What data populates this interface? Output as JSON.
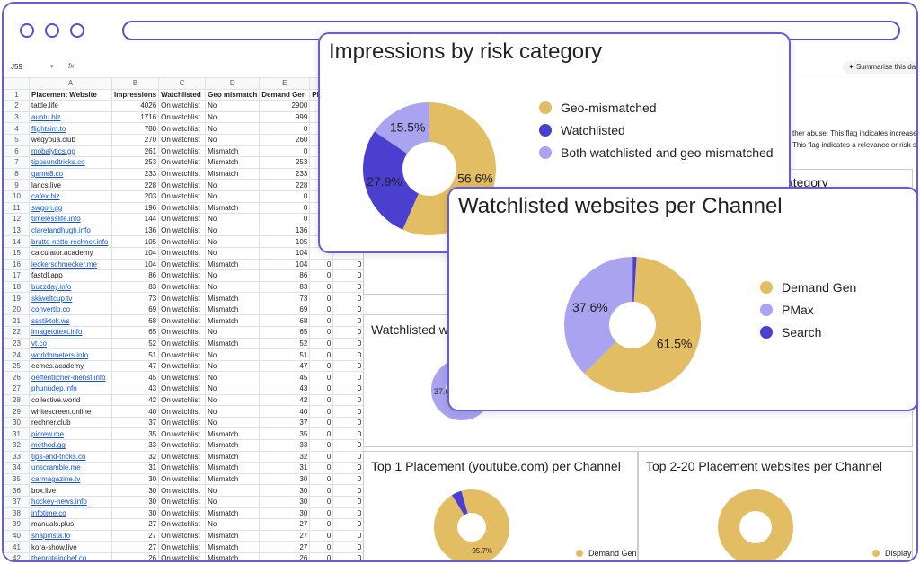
{
  "sheet": {
    "cell_ref": "J59",
    "fx": "fx",
    "summarise_label": "Summarise this da",
    "col_letters": [
      "",
      "A",
      "B",
      "C",
      "D",
      "E",
      "F",
      "",
      "",
      "",
      "",
      "P",
      "Q"
    ],
    "headers": [
      "Placement Website",
      "Impressions",
      "Watchlisted",
      "Geo mismatch",
      "Demand Gen",
      "PM"
    ],
    "rows": [
      [
        "2",
        "tattle.life",
        "4026",
        "On watchlist",
        "No",
        "2900",
        "11",
        "",
        false
      ],
      [
        "3",
        "aubtu.biz",
        "1716",
        "On watchlist",
        "No",
        "999",
        "7",
        "",
        true
      ],
      [
        "4",
        "flightsim.to",
        "780",
        "On watchlist",
        "No",
        "0",
        "6",
        "",
        true
      ],
      [
        "5",
        "weqyoua.club",
        "270",
        "On watchlist",
        "No",
        "260",
        "",
        "",
        false
      ],
      [
        "6",
        "mobalytics.gg",
        "261",
        "On watchlist",
        "Mismatch",
        "0",
        "2",
        "",
        true
      ],
      [
        "7",
        "tippsundtricks.co",
        "253",
        "On watchlist",
        "Mismatch",
        "253",
        "",
        "",
        true
      ],
      [
        "8",
        "game8.co",
        "233",
        "On watchlist",
        "Mismatch",
        "233",
        "",
        "",
        true
      ],
      [
        "9",
        "lancs.live",
        "228",
        "On watchlist",
        "No",
        "228",
        "",
        "",
        false
      ],
      [
        "10",
        "cafex.biz",
        "203",
        "On watchlist",
        "No",
        "0",
        "2",
        "",
        true
      ],
      [
        "11",
        "swgoh.gg",
        "196",
        "On watchlist",
        "Mismatch",
        "0",
        "1",
        "",
        true
      ],
      [
        "12",
        "timelesslife.info",
        "144",
        "On watchlist",
        "No",
        "0",
        "1",
        "",
        true
      ],
      [
        "13",
        "claretandhugh.info",
        "136",
        "On watchlist",
        "No",
        "136",
        "",
        "",
        true
      ],
      [
        "14",
        "brutto-netto-rechner.info",
        "105",
        "On watchlist",
        "No",
        "105",
        "",
        "",
        true
      ],
      [
        "15",
        "calculator.academy",
        "104",
        "On watchlist",
        "No",
        "104",
        "",
        "",
        false
      ],
      [
        "16",
        "leckerschmecker.me",
        "104",
        "On watchlist",
        "Mismatch",
        "104",
        "0",
        "0",
        true
      ],
      [
        "17",
        "fastdl.app",
        "86",
        "On watchlist",
        "No",
        "86",
        "0",
        "0",
        false
      ],
      [
        "18",
        "buzzday.info",
        "83",
        "On watchlist",
        "No",
        "83",
        "0",
        "0",
        true
      ],
      [
        "19",
        "skiweltcup.tv",
        "73",
        "On watchlist",
        "Mismatch",
        "73",
        "0",
        "0",
        true
      ],
      [
        "20",
        "convertio.co",
        "69",
        "On watchlist",
        "Mismatch",
        "69",
        "0",
        "0",
        true
      ],
      [
        "21",
        "ssstiktok.ws",
        "68",
        "On watchlist",
        "Mismatch",
        "68",
        "0",
        "0",
        true
      ],
      [
        "22",
        "imagetotext.info",
        "65",
        "On watchlist",
        "No",
        "65",
        "0",
        "0",
        true
      ],
      [
        "23",
        "vt.co",
        "52",
        "On watchlist",
        "Mismatch",
        "52",
        "0",
        "0",
        true
      ],
      [
        "24",
        "worldometers.info",
        "51",
        "On watchlist",
        "No",
        "51",
        "0",
        "0",
        true
      ],
      [
        "25",
        "ecmes.academy",
        "47",
        "On watchlist",
        "No",
        "47",
        "0",
        "0",
        false
      ],
      [
        "26",
        "oeffentlicher-dienst.info",
        "45",
        "On watchlist",
        "No",
        "45",
        "0",
        "0",
        true
      ],
      [
        "27",
        "phunudep.info",
        "43",
        "On watchlist",
        "No",
        "43",
        "0",
        "0",
        true
      ],
      [
        "28",
        "collective.world",
        "42",
        "On watchlist",
        "No",
        "42",
        "0",
        "0",
        false
      ],
      [
        "29",
        "whitescreen.online",
        "40",
        "On watchlist",
        "No",
        "40",
        "0",
        "0",
        false
      ],
      [
        "30",
        "rechner.club",
        "37",
        "On watchlist",
        "No",
        "37",
        "0",
        "0",
        false
      ],
      [
        "31",
        "picrew.me",
        "35",
        "On watchlist",
        "Mismatch",
        "35",
        "0",
        "0",
        true
      ],
      [
        "32",
        "method.gg",
        "33",
        "On watchlist",
        "Mismatch",
        "33",
        "0",
        "0",
        true
      ],
      [
        "33",
        "tips-and-tricks.co",
        "32",
        "On watchlist",
        "Mismatch",
        "32",
        "0",
        "0",
        true
      ],
      [
        "34",
        "unscramble.me",
        "31",
        "On watchlist",
        "Mismatch",
        "31",
        "0",
        "0",
        true
      ],
      [
        "35",
        "carmagazine.tv",
        "30",
        "On watchlist",
        "Mismatch",
        "30",
        "0",
        "0",
        true
      ],
      [
        "36",
        "box.live",
        "30",
        "On watchlist",
        "No",
        "30",
        "0",
        "0",
        false
      ],
      [
        "37",
        "hockey-news.info",
        "30",
        "On watchlist",
        "No",
        "30",
        "0",
        "0",
        true
      ],
      [
        "38",
        "infotime.co",
        "30",
        "On watchlist",
        "Mismatch",
        "30",
        "0",
        "0",
        true
      ],
      [
        "39",
        "manuals.plus",
        "27",
        "On watchlist",
        "No",
        "27",
        "0",
        "0",
        false
      ],
      [
        "40",
        "snapinsta.to",
        "27",
        "On watchlist",
        "Mismatch",
        "27",
        "0",
        "0",
        true
      ],
      [
        "41",
        "kora-show.live",
        "27",
        "On watchlist",
        "Mismatch",
        "27",
        "0",
        "0",
        false
      ],
      [
        "42",
        "theproteinchef.co",
        "26",
        "On watchlist",
        "Mismatch",
        "26",
        "0",
        "0",
        true
      ]
    ],
    "note1": "ther abuse. This flag indicates increase",
    "note2": "This flag indicates a relevance or risk s",
    "note_c": "c)"
  },
  "bg_cards": {
    "category_title": "ategory",
    "watchlisted_title": "Watchlisted w",
    "top1_title": "Top 1 Placement (youtube.com) per Channel",
    "top2_title": "Top 2-20 Placement websites per Channel",
    "partial_label": "37.6"
  },
  "colors": {
    "gold": "#e3bd63",
    "indigo": "#4a3fcf",
    "lavender": "#a9a3f0",
    "accent": "#6b5cd6"
  },
  "chart_data": [
    {
      "type": "pie",
      "title": "Impressions by risk category",
      "categories": [
        "Geo-mismatched",
        "Watchlisted",
        "Both watchlisted and geo-mismatched"
      ],
      "values": [
        56.6,
        27.9,
        15.5
      ],
      "labels": [
        "56.6%",
        "27.9%",
        "15.5%"
      ],
      "legend": "right"
    },
    {
      "type": "pie",
      "title": "Watchlisted websites per Channel",
      "categories": [
        "Demand Gen",
        "PMax",
        "Search"
      ],
      "values": [
        61.5,
        37.6,
        0.9
      ],
      "labels": [
        "61.5%",
        "37.6%",
        ""
      ],
      "legend": "right"
    },
    {
      "type": "pie",
      "title": "Top 1 Placement (youtube.com) per Channel",
      "categories": [
        "Demand Gen",
        "PMax",
        "Search"
      ],
      "values": [
        95.7,
        4.3,
        0
      ],
      "labels": [
        "95.7%",
        "",
        ""
      ],
      "legend": "right"
    },
    {
      "type": "pie",
      "title": "Top 2-20 Placement websites per Channel",
      "categories": [
        "Display"
      ],
      "values": [
        100
      ],
      "labels": [
        ""
      ],
      "legend": "right"
    }
  ]
}
